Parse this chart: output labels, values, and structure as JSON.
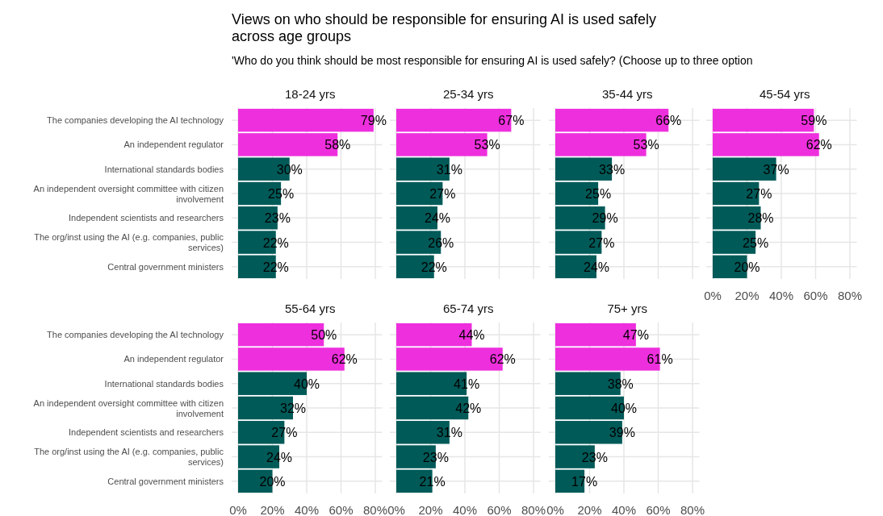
{
  "chart_data": [
    {
      "type": "other",
      "title": "Views on who should be responsible for ensuring AI is used safely across age groups",
      "subtitle": "'Who do you think should be most responsible for ensuring AI is used safely? (Choose up to three option"
    },
    {
      "type": "bar",
      "orientation": "horizontal",
      "title": "18-24 yrs",
      "categories": [
        "The companies developing the AI technology",
        "An independent regulator",
        "International standards bodies",
        "An independent oversight committee with citizen involvement",
        "Independent scientists and researchers",
        "The org/inst using the AI (e.g. companies, public services)",
        "Central government ministers"
      ],
      "values": [
        79,
        58,
        30,
        25,
        23,
        22,
        22
      ],
      "colors": [
        "#ee2fdd",
        "#ee2fdd",
        "#005a58",
        "#005a58",
        "#005a58",
        "#005a58",
        "#005a58"
      ],
      "value_labels": [
        "79%",
        "58%",
        "30%",
        "25%",
        "23%",
        "22%",
        "22%"
      ],
      "xlim": [
        0,
        84
      ],
      "xticks": [
        {
          "value": 0,
          "label": null
        },
        {
          "value": 20,
          "label": null
        },
        {
          "value": 40,
          "label": null
        },
        {
          "value": 60,
          "label": null
        },
        {
          "value": 80,
          "label": null
        }
      ],
      "grid": true,
      "tick_labels": "y"
    },
    {
      "type": "bar",
      "orientation": "horizontal",
      "title": "25-34 yrs",
      "categories": [
        null,
        null,
        null,
        null,
        null,
        null,
        null
      ],
      "values": [
        67,
        53,
        31,
        27,
        24,
        26,
        22
      ],
      "colors": [
        "#ee2fdd",
        "#ee2fdd",
        "#005a58",
        "#005a58",
        "#005a58",
        "#005a58",
        "#005a58"
      ],
      "value_labels": [
        "67%",
        "53%",
        "31%",
        "27%",
        "24%",
        "26%",
        "22%"
      ],
      "xlim": [
        0,
        84
      ],
      "xticks": [
        {
          "value": 0,
          "label": null
        },
        {
          "value": 20,
          "label": null
        },
        {
          "value": 40,
          "label": null
        },
        {
          "value": 60,
          "label": null
        },
        {
          "value": 80,
          "label": null
        }
      ],
      "grid": true,
      "tick_labels": false
    },
    {
      "type": "bar",
      "orientation": "horizontal",
      "title": "35-44 yrs",
      "categories": [
        null,
        null,
        null,
        null,
        null,
        null,
        null
      ],
      "values": [
        66,
        53,
        33,
        25,
        29,
        27,
        24
      ],
      "colors": [
        "#ee2fdd",
        "#ee2fdd",
        "#005a58",
        "#005a58",
        "#005a58",
        "#005a58",
        "#005a58"
      ],
      "value_labels": [
        "66%",
        "53%",
        "33%",
        "25%",
        "29%",
        "27%",
        "24%"
      ],
      "xlim": [
        0,
        84
      ],
      "xticks": [
        {
          "value": 0,
          "label": null
        },
        {
          "value": 20,
          "label": null
        },
        {
          "value": 40,
          "label": null
        },
        {
          "value": 60,
          "label": null
        },
        {
          "value": 80,
          "label": null
        }
      ],
      "grid": true,
      "tick_labels": false
    },
    {
      "type": "bar",
      "orientation": "horizontal",
      "title": "45-54 yrs",
      "categories": [
        null,
        null,
        null,
        null,
        null,
        null,
        null
      ],
      "values": [
        59,
        62,
        37,
        27,
        28,
        25,
        20
      ],
      "colors": [
        "#ee2fdd",
        "#ee2fdd",
        "#005a58",
        "#005a58",
        "#005a58",
        "#005a58",
        "#005a58"
      ],
      "value_labels": [
        "59%",
        "62%",
        "37%",
        "27%",
        "28%",
        "25%",
        "20%"
      ],
      "xlim": [
        0,
        84
      ],
      "xticks": [
        {
          "value": 0,
          "label": "0%"
        },
        {
          "value": 20,
          "label": "20%"
        },
        {
          "value": 40,
          "label": "40%"
        },
        {
          "value": 60,
          "label": "60%"
        },
        {
          "value": 80,
          "label": "80%"
        }
      ],
      "grid": true,
      "tick_labels": "x"
    },
    {
      "type": "bar",
      "orientation": "horizontal",
      "title": "55-64 yrs",
      "categories": [
        "The companies developing the AI technology",
        "An independent regulator",
        "International standards bodies",
        "An independent oversight committee with citizen involvement",
        "Independent scientists and researchers",
        "The org/inst using the AI (e.g. companies, public services)",
        "Central government ministers"
      ],
      "values": [
        50,
        62,
        40,
        32,
        27,
        24,
        20
      ],
      "colors": [
        "#ee2fdd",
        "#ee2fdd",
        "#005a58",
        "#005a58",
        "#005a58",
        "#005a58",
        "#005a58"
      ],
      "value_labels": [
        "50%",
        "62%",
        "40%",
        "32%",
        "27%",
        "24%",
        "20%"
      ],
      "xlim": [
        0,
        84
      ],
      "xticks": [
        {
          "value": 0,
          "label": "0%"
        },
        {
          "value": 20,
          "label": "20%"
        },
        {
          "value": 40,
          "label": "40%"
        },
        {
          "value": 60,
          "label": "60%"
        },
        {
          "value": 80,
          "label": "80%"
        }
      ],
      "grid": true
    },
    {
      "type": "bar",
      "orientation": "horizontal",
      "title": "65-74 yrs",
      "categories": [
        null,
        null,
        null,
        null,
        null,
        null,
        null
      ],
      "values": [
        44,
        62,
        41,
        42,
        31,
        23,
        21
      ],
      "colors": [
        "#ee2fdd",
        "#ee2fdd",
        "#005a58",
        "#005a58",
        "#005a58",
        "#005a58",
        "#005a58"
      ],
      "value_labels": [
        "44%",
        "62%",
        "41%",
        "42%",
        "31%",
        "23%",
        "21%"
      ],
      "xlim": [
        0,
        84
      ],
      "xticks": [
        {
          "value": 0,
          "label": "0%"
        },
        {
          "value": 20,
          "label": "20%"
        },
        {
          "value": 40,
          "label": "40%"
        },
        {
          "value": 60,
          "label": "60%"
        },
        {
          "value": 80,
          "label": "80%"
        }
      ],
      "grid": true,
      "tick_labels": "x"
    },
    {
      "type": "bar",
      "orientation": "horizontal",
      "title": "75+ yrs",
      "categories": [
        null,
        null,
        null,
        null,
        null,
        null,
        null
      ],
      "values": [
        47,
        61,
        38,
        40,
        39,
        23,
        17
      ],
      "colors": [
        "#ee2fdd",
        "#ee2fdd",
        "#005a58",
        "#005a58",
        "#005a58",
        "#005a58",
        "#005a58"
      ],
      "value_labels": [
        "47%",
        "61%",
        "38%",
        "40%",
        "39%",
        "23%",
        "17%"
      ],
      "xlim": [
        0,
        84
      ],
      "xticks": [
        {
          "value": 0,
          "label": "0%"
        },
        {
          "value": 20,
          "label": "20%"
        },
        {
          "value": 40,
          "label": "40%"
        },
        {
          "value": 60,
          "label": "60%"
        },
        {
          "value": 80,
          "label": "80%"
        }
      ],
      "grid": true,
      "tick_labels": "x"
    }
  ]
}
